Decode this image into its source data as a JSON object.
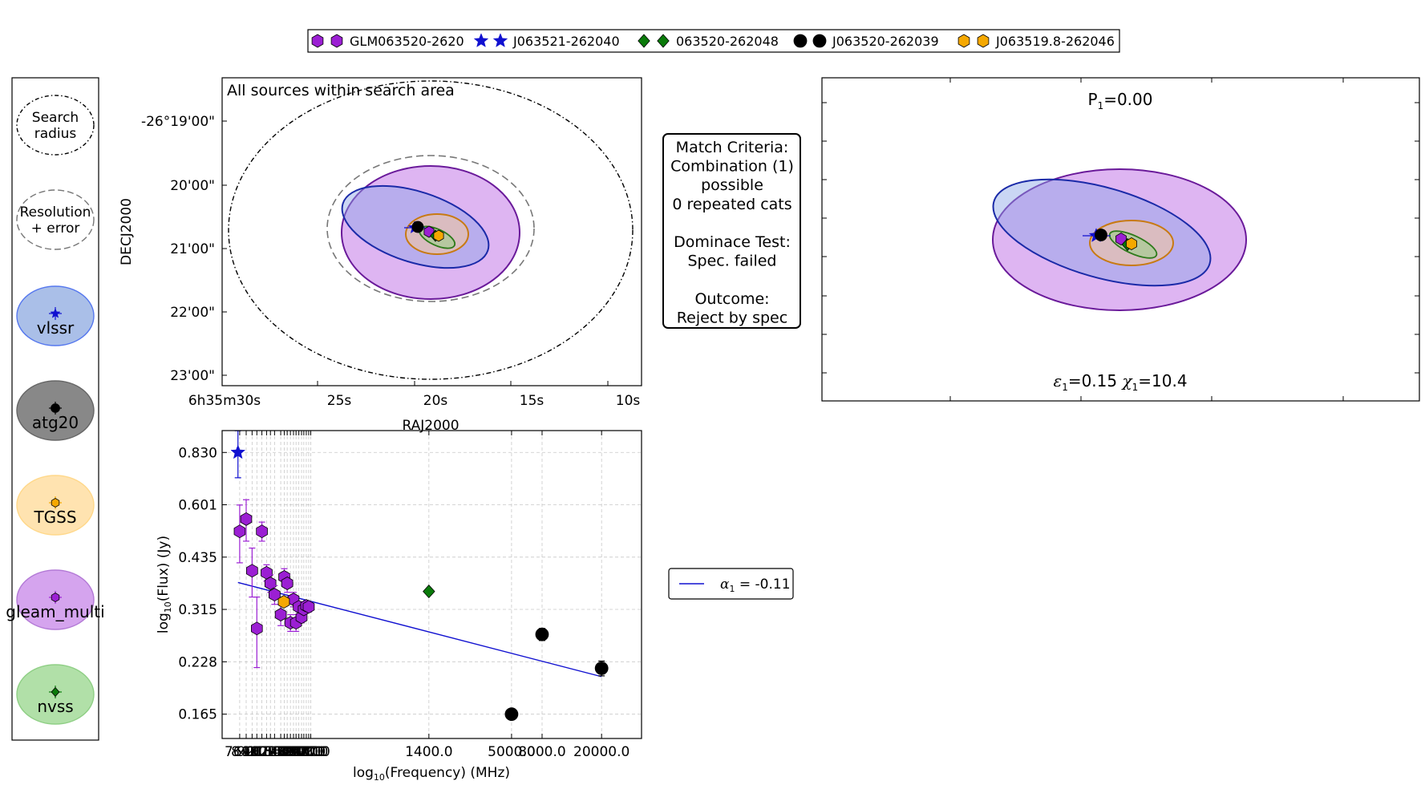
{
  "legend_top": {
    "items": [
      {
        "label": "GLM063520-2620",
        "marker": "hexagon",
        "color": "#9b1fd3"
      },
      {
        "label": "J063521-262040",
        "marker": "star",
        "color": "#1010d0"
      },
      {
        "label": "063520-262048",
        "marker": "diamond",
        "color": "#0a7a0a"
      },
      {
        "label": "J063520-262039",
        "marker": "circle",
        "color": "#000000"
      },
      {
        "label": "J063519.8-262046",
        "marker": "hexagon",
        "color": "#f5a800"
      }
    ]
  },
  "key_panel": {
    "items": [
      {
        "label_lines": [
          "Search",
          "radius"
        ],
        "style": "dashdot-circle"
      },
      {
        "label_lines": [
          "Resolution",
          "+ error"
        ],
        "style": "dashed-circle"
      },
      {
        "label_lines": [
          "vlssr"
        ],
        "fill": "#aabfe8",
        "edge": "#5577ee",
        "marker": "star",
        "marker_color": "#1010d0"
      },
      {
        "label_lines": [
          "atg20"
        ],
        "fill": "#888888",
        "edge": "#666666",
        "marker": "circle",
        "marker_color": "#000000"
      },
      {
        "label_lines": [
          "TGSS"
        ],
        "fill": "#ffe3b0",
        "edge": "#ffd88a",
        "marker": "hexagon",
        "marker_color": "#f5a800"
      },
      {
        "label_lines": [
          "gleam_multi"
        ],
        "fill": "#d5a4ee",
        "edge": "#b37ad6",
        "marker": "hexagon",
        "marker_color": "#9b1fd3"
      },
      {
        "label_lines": [
          "nvss"
        ],
        "fill": "#b1e0a8",
        "edge": "#8fcf85",
        "marker": "diamond",
        "marker_color": "#0a7a0a"
      }
    ]
  },
  "sky_panel": {
    "annotation": "All sources within search area",
    "xlabel": "RAJ2000",
    "ylabel": "DECJ2000",
    "x_ticks": [
      "6h35m30s",
      "25s",
      "20s",
      "15s",
      "10s"
    ],
    "y_ticks": [
      "-26°19'00\"",
      "20'00\"",
      "21'00\"",
      "22'00\"",
      "23'00\""
    ]
  },
  "match_box": {
    "lines": [
      "Match Criteria:",
      "Combination (1)",
      "possible",
      "0 repeated cats",
      "",
      "Dominace Test:",
      "Spec. failed",
      "",
      "Outcome:",
      "Reject by spec"
    ]
  },
  "zoom_panel": {
    "title": "P",
    "title_sub": "1",
    "title_value": "=0.00",
    "stats": {
      "eps_sub": "1",
      "eps_value": "=0.15",
      "chi_sub": "1",
      "chi_value": "=10.4"
    }
  },
  "fit_legend": {
    "alpha_sub": "1",
    "text": " = -0.11",
    "line_color": "#1010d0"
  },
  "chart_data": {
    "type": "scatter",
    "xlabel": "log10(Frequency) (MHz)",
    "ylabel": "log10(Flux) (Jy)",
    "xscale": "log",
    "yscale": "log",
    "xlim": [
      58,
      37000
    ],
    "ylim": [
      0.142,
      0.95
    ],
    "x_tick_labels": [
      "76.0",
      "84.0",
      "92.0",
      "99.0",
      "107.0",
      "115.0",
      "122.0",
      "130.0",
      "143.0",
      "151.0",
      "158.0",
      "166.0",
      "174.0",
      "181.0",
      "189.0",
      "197.0",
      "204.0",
      "212.0",
      "220.0",
      "227.0",
      "1400.0",
      "5000.0",
      "8000.0",
      "20000.0"
    ],
    "y_tick_labels": [
      "0.165",
      "0.228",
      "0.315",
      "0.435",
      "0.601",
      "0.830"
    ],
    "y_ticks": [
      0.165,
      0.228,
      0.315,
      0.435,
      0.601,
      0.83
    ],
    "grid": true,
    "series": [
      {
        "name": "GLM063520-2620",
        "marker": "hexagon",
        "color": "#9b1fd3",
        "points": [
          {
            "x": 76,
            "y": 0.51,
            "yerr": [
              0.09,
              0.09
            ]
          },
          {
            "x": 84,
            "y": 0.55,
            "yerr": [
              0.07,
              0.07
            ]
          },
          {
            "x": 92,
            "y": 0.4,
            "yerr": [
              0.06,
              0.06
            ]
          },
          {
            "x": 99,
            "y": 0.28,
            "yerr": [
              0.06,
              0.06
            ]
          },
          {
            "x": 107,
            "y": 0.51,
            "yerr": [
              0.03,
              0.03
            ]
          },
          {
            "x": 115,
            "y": 0.395,
            "yerr": [
              0.02,
              0.02
            ]
          },
          {
            "x": 122,
            "y": 0.37,
            "yerr": [
              0.02,
              0.02
            ]
          },
          {
            "x": 130,
            "y": 0.345,
            "yerr": [
              0.02,
              0.02
            ]
          },
          {
            "x": 143,
            "y": 0.305,
            "yerr": [
              0.02,
              0.02
            ]
          },
          {
            "x": 151,
            "y": 0.385,
            "yerr": [
              0.02,
              0.02
            ]
          },
          {
            "x": 158,
            "y": 0.37,
            "yerr": [
              0.02,
              0.02
            ]
          },
          {
            "x": 166,
            "y": 0.29,
            "yerr": [
              0.015,
              0.015
            ]
          },
          {
            "x": 174,
            "y": 0.335,
            "yerr": [
              0.015,
              0.015
            ]
          },
          {
            "x": 181,
            "y": 0.29,
            "yerr": [
              0.015,
              0.015
            ]
          },
          {
            "x": 189,
            "y": 0.32,
            "yerr": [
              0.01,
              0.01
            ]
          },
          {
            "x": 197,
            "y": 0.3,
            "yerr": [
              0.01,
              0.01
            ]
          },
          {
            "x": 204,
            "y": 0.315,
            "yerr": [
              0.01,
              0.01
            ]
          },
          {
            "x": 212,
            "y": 0.322,
            "yerr": [
              0.01,
              0.01
            ]
          },
          {
            "x": 220,
            "y": 0.32,
            "yerr": [
              0.01,
              0.01
            ]
          }
        ]
      },
      {
        "name": "J063521-262040",
        "marker": "star",
        "color": "#1010d0",
        "points": [
          {
            "x": 74,
            "y": 0.83,
            "yerr": [
              0.12,
              0.2
            ]
          }
        ]
      },
      {
        "name": "063520-262048",
        "marker": "diamond",
        "color": "#0a7a0a",
        "points": [
          {
            "x": 1400,
            "y": 0.352,
            "yerr": [
              0,
              0
            ]
          }
        ]
      },
      {
        "name": "J063520-262039",
        "marker": "circle",
        "color": "#000000",
        "points": [
          {
            "x": 5000,
            "y": 0.165,
            "yerr": [
              0.005,
              0.005
            ]
          },
          {
            "x": 8000,
            "y": 0.27,
            "yerr": [
              0.01,
              0.01
            ]
          },
          {
            "x": 20000,
            "y": 0.219,
            "yerr": [
              0.01,
              0.01
            ]
          }
        ]
      },
      {
        "name": "J063519.8-262046",
        "marker": "hexagon",
        "color": "#f5a800",
        "points": [
          {
            "x": 150,
            "y": 0.33,
            "yerr": [
              0,
              0
            ]
          }
        ]
      }
    ],
    "fit_line": {
      "label": "α1 = -0.11",
      "color": "#1010d0",
      "points": [
        {
          "x": 74,
          "y": 0.372
        },
        {
          "x": 20000,
          "y": 0.208
        }
      ]
    }
  }
}
